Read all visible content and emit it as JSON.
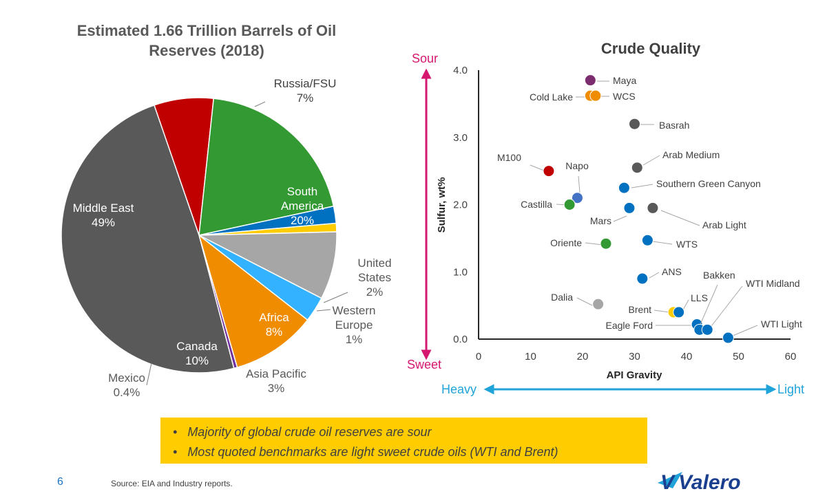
{
  "pie": {
    "title_line1": "Estimated 1.66 Trillion Barrels of Oil",
    "title_line2": "Reserves (2018)"
  },
  "scatter": {
    "title": "Crude Quality",
    "sour_label": "Sour",
    "sweet_label": "Sweet",
    "heavy_label": "Heavy",
    "light_label": "Light"
  },
  "callout": {
    "bullets": [
      "Majority of global crude oil reserves are sour",
      "Most quoted benchmarks are light sweet crude oils (WTI and Brent)"
    ]
  },
  "footer": {
    "page_number": "6",
    "source": "Source: EIA and Industry reports.",
    "logo_text": "Valero",
    "logo_mark": "V"
  },
  "colors": {
    "sour": "#d6176f",
    "light_arrow": "#1fa3d9",
    "callout": "#ffcc00"
  },
  "chart_data": [
    {
      "type": "pie",
      "title": "Estimated 1.66 Trillion Barrels of Oil Reserves (2018)",
      "slices": [
        {
          "name": "Russia/FSU",
          "value": 7,
          "label": "7%",
          "color": "#c00000"
        },
        {
          "name": "South America",
          "value": 20,
          "label": "20%",
          "color": "#339933"
        },
        {
          "name": "United States",
          "value": 2,
          "label": "2%",
          "color": "#0070c0"
        },
        {
          "name": "Western Europe",
          "value": 1,
          "label": "1%",
          "color": "#ffcc00"
        },
        {
          "name": "Africa",
          "value": 8,
          "label": "8%",
          "color": "#a6a6a6"
        },
        {
          "name": "Asia Pacific",
          "value": 3,
          "label": "3%",
          "color": "#33b2ff"
        },
        {
          "name": "Canada",
          "value": 10,
          "label": "10%",
          "color": "#f08c00"
        },
        {
          "name": "Mexico",
          "value": 0.4,
          "label": "0.4%",
          "color": "#7030a0"
        },
        {
          "name": "Middle East",
          "value": 49,
          "label": "49%",
          "color": "#595959"
        }
      ]
    },
    {
      "type": "scatter",
      "title": "Crude Quality",
      "xlabel": "API Gravity",
      "ylabel": "Sulfur, wt%",
      "xlim": [
        0,
        60
      ],
      "ylim": [
        0,
        4
      ],
      "xticks": [
        "0",
        "10",
        "20",
        "30",
        "40",
        "50",
        "60"
      ],
      "yticks": [
        "0.0",
        "1.0",
        "2.0",
        "3.0",
        "4.0"
      ],
      "grid": false,
      "points": [
        {
          "name": "Maya",
          "x": 21.5,
          "y": 3.85,
          "color": "#7b2d6e"
        },
        {
          "name": "Cold Lake",
          "x": 21.5,
          "y": 3.62,
          "color": "#f08c00"
        },
        {
          "name": "WCS",
          "x": 22.5,
          "y": 3.62,
          "color": "#f08c00"
        },
        {
          "name": "Basrah",
          "x": 30,
          "y": 3.2,
          "color": "#595959"
        },
        {
          "name": "Arab Medium",
          "x": 30.5,
          "y": 2.55,
          "color": "#595959"
        },
        {
          "name": "M100",
          "x": 13.5,
          "y": 2.5,
          "color": "#c00000"
        },
        {
          "name": "Southern Green Canyon",
          "x": 28,
          "y": 2.25,
          "color": "#0070c0"
        },
        {
          "name": "Napo",
          "x": 19,
          "y": 2.1,
          "color": "#4472c4"
        },
        {
          "name": "Castilla",
          "x": 17.5,
          "y": 2.0,
          "color": "#339933"
        },
        {
          "name": "Mars",
          "x": 29,
          "y": 1.95,
          "color": "#0070c0"
        },
        {
          "name": "Arab Light",
          "x": 33.5,
          "y": 1.95,
          "color": "#595959"
        },
        {
          "name": "WTS",
          "x": 32.5,
          "y": 1.47,
          "color": "#0070c0"
        },
        {
          "name": "Oriente",
          "x": 24.5,
          "y": 1.42,
          "color": "#339933"
        },
        {
          "name": "ANS",
          "x": 31.5,
          "y": 0.9,
          "color": "#0070c0"
        },
        {
          "name": "Dalia",
          "x": 23,
          "y": 0.52,
          "color": "#a6a6a6"
        },
        {
          "name": "Brent",
          "x": 37.5,
          "y": 0.4,
          "color": "#ffcc00"
        },
        {
          "name": "LLS",
          "x": 38.5,
          "y": 0.4,
          "color": "#0070c0"
        },
        {
          "name": "Eagle Ford",
          "x": 42,
          "y": 0.22,
          "color": "#0070c0"
        },
        {
          "name": "Bakken",
          "x": 42.5,
          "y": 0.14,
          "color": "#0070c0"
        },
        {
          "name": "WTI Midland",
          "x": 44,
          "y": 0.14,
          "color": "#0070c0"
        },
        {
          "name": "WTI Light",
          "x": 48,
          "y": 0.02,
          "color": "#0070c0"
        }
      ]
    }
  ]
}
